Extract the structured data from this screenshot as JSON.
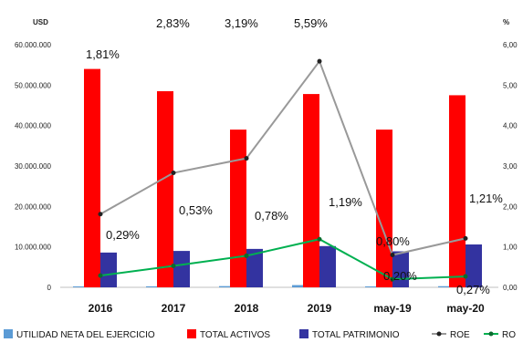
{
  "chart_data": {
    "type": "bar",
    "categories": [
      "2016",
      "2017",
      "2018",
      "2019",
      "may-19",
      "may-20"
    ],
    "y_left_unit": "USD",
    "y_right_unit": "%",
    "ylim": [
      0,
      60000000
    ],
    "y_left_ticks": [
      "0",
      "10.000.000",
      "20.000.000",
      "30.000.000",
      "40.000.000",
      "50.000.000",
      "60.000.000"
    ],
    "ylim_right": [
      0,
      6
    ],
    "y_right_ticks": [
      "0,00",
      "1,00",
      "2,00",
      "3,00",
      "4,00",
      "5,00",
      "6,00"
    ],
    "bar_series": [
      {
        "name": "UTILIDAD NETA DEL EJERCICIO",
        "color": "#5b9bd5",
        "values": [
          160000,
          250000,
          300000,
          550000,
          80000,
          280000
        ]
      },
      {
        "name": "TOTAL ACTIVOS",
        "color": "#ff0000",
        "values": [
          54000000,
          48500000,
          39000000,
          47800000,
          39000000,
          47500000
        ]
      },
      {
        "name": "TOTAL PATRIMONIO",
        "color": "#3333a0",
        "values": [
          8600000,
          9000000,
          9500000,
          10200000,
          8900000,
          10600000
        ]
      }
    ],
    "line_series": [
      {
        "name": "ROE",
        "color": "#999999",
        "values": [
          1.81,
          2.83,
          3.19,
          5.59,
          0.8,
          1.21
        ],
        "labels": [
          "1,81%",
          "2,83%",
          "3,19%",
          "5,59%",
          "0,80%",
          "1,21%"
        ]
      },
      {
        "name": "RO",
        "color": "#00b050",
        "values": [
          0.29,
          0.53,
          0.78,
          1.19,
          0.2,
          0.27
        ],
        "labels": [
          "0,29%",
          "0,53%",
          "0,78%",
          "1,19%",
          "0,20%",
          "0,27%"
        ]
      }
    ],
    "legend_position": "bottom"
  }
}
